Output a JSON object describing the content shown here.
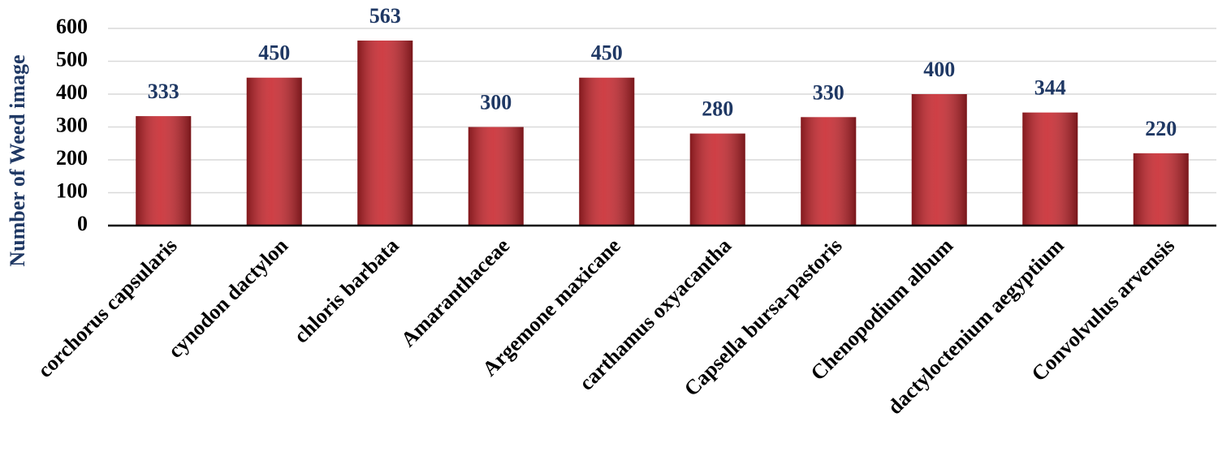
{
  "chart_data": {
    "type": "bar",
    "y_label": "Number of Weed image",
    "categories": [
      "corchorus capsularis",
      "cynodon dactylon",
      "chloris barbata",
      "Amaranthaceae",
      "Argemone maxicane",
      "carthamus oxyacantha",
      "Capsella bursa-pastoris",
      "Chenopodium album",
      "dactyloctenium aegyptium",
      "Convolvulus arvensis"
    ],
    "values": [
      333,
      450,
      563,
      300,
      450,
      280,
      330,
      400,
      344,
      220
    ],
    "color": "#c8252c",
    "label_color": "#1f3864",
    "ylim": [
      0,
      600
    ],
    "yticks": [
      0,
      100,
      200,
      300,
      400,
      500,
      600
    ],
    "grid": true
  }
}
